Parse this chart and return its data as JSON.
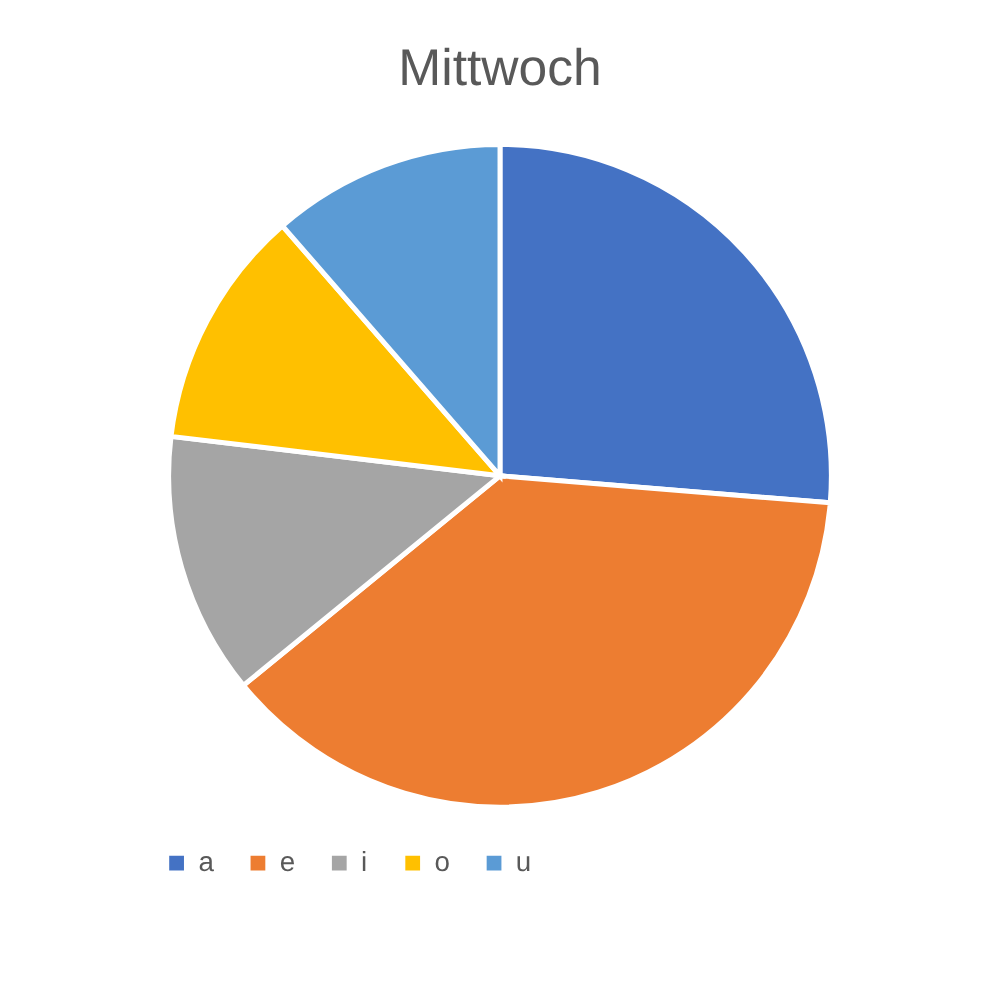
{
  "chart_data": {
    "type": "pie",
    "title": "Mittwoch",
    "categories": [
      "a",
      "e",
      "i",
      "o",
      "u"
    ],
    "values": [
      26.3,
      37.8,
      12.8,
      11.7,
      11.4
    ],
    "colors": [
      "#4472c4",
      "#ed7d31",
      "#a5a5a5",
      "#ffc000",
      "#5b9bd5"
    ],
    "legend": "bottom"
  }
}
